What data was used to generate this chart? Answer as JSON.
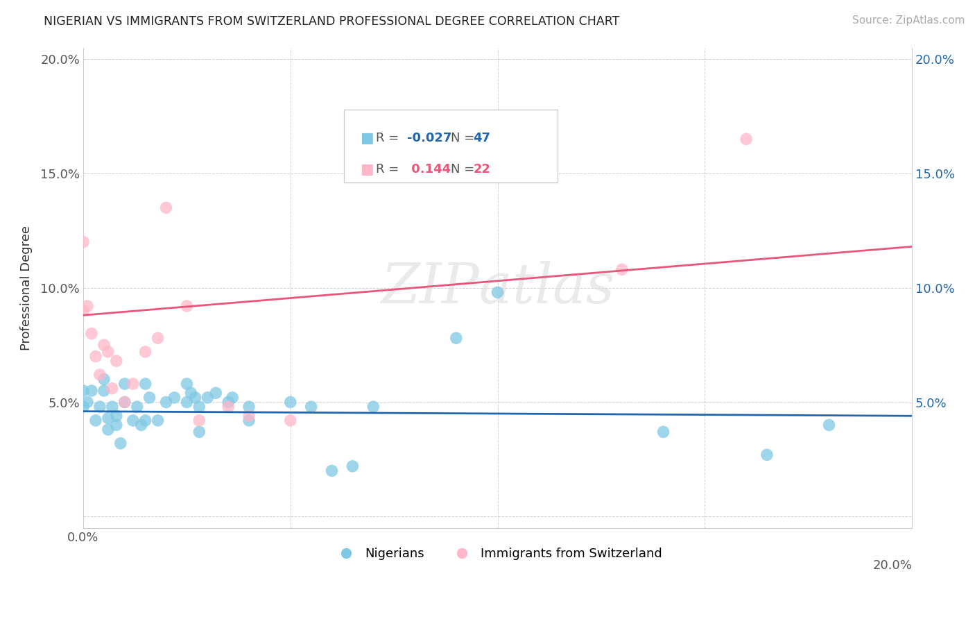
{
  "title": "NIGERIAN VS IMMIGRANTS FROM SWITZERLAND PROFESSIONAL DEGREE CORRELATION CHART",
  "source": "Source: ZipAtlas.com",
  "ylabel": "Professional Degree",
  "watermark": "ZIPAtlas",
  "xmin": 0.0,
  "xmax": 0.2,
  "ymin": -0.005,
  "ymax": 0.205,
  "xticks": [
    0.0,
    0.05,
    0.1,
    0.15,
    0.2
  ],
  "yticks": [
    0.0,
    0.05,
    0.1,
    0.15,
    0.2
  ],
  "xtick_labels": [
    "0.0%",
    "",
    "",
    "",
    "20.0%"
  ],
  "ytick_labels_left": [
    "",
    "5.0%",
    "10.0%",
    "15.0%",
    "20.0%"
  ],
  "ytick_labels_right": [
    "",
    "5.0%",
    "10.0%",
    "15.0%",
    "20.0%"
  ],
  "blue_color": "#7ec8e3",
  "pink_color": "#ffb6c8",
  "blue_line_color": "#2166ac",
  "pink_line_color": "#e8567a",
  "legend_blue_label": "Nigerians",
  "legend_pink_label": "Immigrants from Switzerland",
  "r_blue": -0.027,
  "n_blue": 47,
  "r_pink": 0.144,
  "n_pink": 22,
  "blue_scatter_x": [
    0.0,
    0.0,
    0.001,
    0.002,
    0.003,
    0.004,
    0.005,
    0.005,
    0.006,
    0.006,
    0.007,
    0.008,
    0.008,
    0.009,
    0.01,
    0.01,
    0.012,
    0.013,
    0.014,
    0.015,
    0.015,
    0.016,
    0.018,
    0.02,
    0.022,
    0.025,
    0.025,
    0.026,
    0.027,
    0.028,
    0.028,
    0.03,
    0.032,
    0.035,
    0.036,
    0.04,
    0.04,
    0.05,
    0.055,
    0.06,
    0.065,
    0.09,
    0.1,
    0.14,
    0.165,
    0.18,
    0.07
  ],
  "blue_scatter_y": [
    0.048,
    0.055,
    0.05,
    0.055,
    0.042,
    0.048,
    0.06,
    0.055,
    0.038,
    0.043,
    0.048,
    0.04,
    0.044,
    0.032,
    0.05,
    0.058,
    0.042,
    0.048,
    0.04,
    0.042,
    0.058,
    0.052,
    0.042,
    0.05,
    0.052,
    0.058,
    0.05,
    0.054,
    0.052,
    0.048,
    0.037,
    0.052,
    0.054,
    0.05,
    0.052,
    0.048,
    0.042,
    0.05,
    0.048,
    0.02,
    0.022,
    0.078,
    0.098,
    0.037,
    0.027,
    0.04,
    0.048
  ],
  "pink_scatter_x": [
    0.0,
    0.0,
    0.001,
    0.002,
    0.003,
    0.005,
    0.006,
    0.007,
    0.008,
    0.01,
    0.012,
    0.015,
    0.018,
    0.02,
    0.025,
    0.028,
    0.035,
    0.04,
    0.05,
    0.13,
    0.16,
    0.004
  ],
  "pink_scatter_y": [
    0.09,
    0.12,
    0.092,
    0.08,
    0.07,
    0.075,
    0.072,
    0.056,
    0.068,
    0.05,
    0.058,
    0.072,
    0.078,
    0.135,
    0.092,
    0.042,
    0.048,
    0.044,
    0.042,
    0.108,
    0.165,
    0.062
  ],
  "blue_line_x": [
    0.0,
    0.2
  ],
  "blue_line_y": [
    0.046,
    0.044
  ],
  "pink_line_x": [
    0.0,
    0.2
  ],
  "pink_line_y": [
    0.088,
    0.118
  ]
}
